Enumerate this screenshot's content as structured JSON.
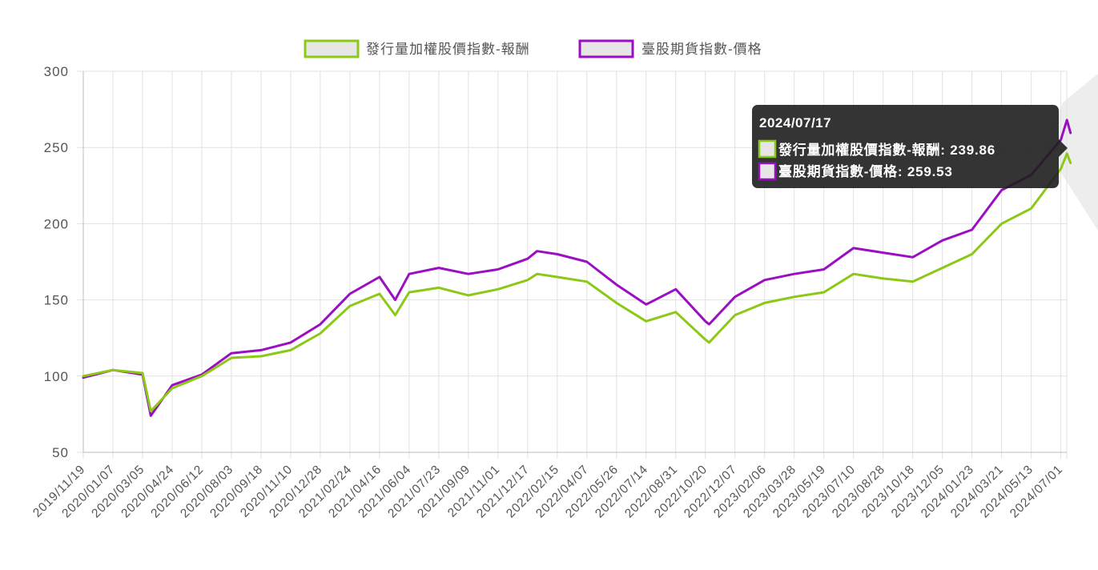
{
  "chart_data": {
    "type": "line",
    "title": "",
    "xlabel": "",
    "ylabel": "",
    "ylim": [
      50,
      300
    ],
    "y_ticks": [
      "300",
      "250",
      "200",
      "150",
      "100",
      "50"
    ],
    "x_tick_labels": [
      "2019/11/19",
      "2020/01/07",
      "2020/03/05",
      "2020/04/24",
      "2020/06/12",
      "2020/08/03",
      "2020/09/18",
      "2020/11/10",
      "2020/12/28",
      "2021/02/24",
      "2021/04/16",
      "2021/06/04",
      "2021/07/23",
      "2021/09/09",
      "2021/11/01",
      "2021/12/17",
      "2022/02/15",
      "2022/04/07",
      "2022/05/26",
      "2022/07/14",
      "2022/08/31",
      "2022/10/20",
      "2022/12/07",
      "2023/02/06",
      "2023/03/28",
      "2023/05/19",
      "2023/07/10",
      "2023/08/28",
      "2023/10/18",
      "2023/12/05",
      "2024/01/23",
      "2024/03/21",
      "2024/05/13",
      "2024/07/01"
    ],
    "grid": true,
    "legend_position": "top",
    "series": [
      {
        "name": "發行量加權股價指數-報酬",
        "color": "#8cc917",
        "x": [
          "2019/11/19",
          "2020/01/07",
          "2020/03/05",
          "2020/03/19",
          "2020/04/24",
          "2020/06/12",
          "2020/08/03",
          "2020/09/18",
          "2020/11/10",
          "2020/12/28",
          "2021/02/24",
          "2021/04/16",
          "2021/05/12",
          "2021/06/04",
          "2021/07/23",
          "2021/09/09",
          "2021/11/01",
          "2021/12/17",
          "2022/01/05",
          "2022/02/15",
          "2022/04/07",
          "2022/05/26",
          "2022/07/14",
          "2022/08/31",
          "2022/10/20",
          "2022/10/26",
          "2022/12/07",
          "2023/02/06",
          "2023/03/28",
          "2023/05/19",
          "2023/07/10",
          "2023/08/28",
          "2023/10/18",
          "2023/12/05",
          "2024/01/23",
          "2024/03/21",
          "2024/05/13",
          "2024/07/01",
          "2024/07/11",
          "2024/07/17"
        ],
        "values": [
          100,
          104,
          102,
          77,
          92,
          100,
          112,
          113,
          117,
          128,
          146,
          154,
          140,
          155,
          158,
          153,
          157,
          163,
          167,
          165,
          162,
          148,
          136,
          142,
          124,
          122,
          140,
          148,
          152,
          155,
          167,
          164,
          162,
          171,
          180,
          200,
          210,
          236,
          246,
          239.86
        ]
      },
      {
        "name": "臺股期貨指數-價格",
        "color": "#9b0fc2",
        "x": [
          "2019/11/19",
          "2020/01/07",
          "2020/03/05",
          "2020/03/19",
          "2020/04/24",
          "2020/06/12",
          "2020/08/03",
          "2020/09/18",
          "2020/11/10",
          "2020/12/28",
          "2021/02/24",
          "2021/04/16",
          "2021/05/12",
          "2021/06/04",
          "2021/07/23",
          "2021/09/09",
          "2021/11/01",
          "2021/12/17",
          "2022/01/05",
          "2022/02/15",
          "2022/04/07",
          "2022/05/26",
          "2022/07/14",
          "2022/08/31",
          "2022/10/20",
          "2022/10/26",
          "2022/12/07",
          "2023/02/06",
          "2023/03/28",
          "2023/05/19",
          "2023/07/10",
          "2023/08/28",
          "2023/10/18",
          "2023/12/05",
          "2024/01/23",
          "2024/03/21",
          "2024/05/13",
          "2024/07/01",
          "2024/07/11",
          "2024/07/17"
        ],
        "values": [
          99,
          104,
          101,
          74,
          94,
          101,
          115,
          117,
          122,
          134,
          154,
          165,
          150,
          167,
          171,
          167,
          170,
          177,
          182,
          180,
          175,
          160,
          147,
          157,
          136,
          134,
          152,
          163,
          167,
          170,
          184,
          181,
          178,
          189,
          196,
          222,
          232,
          255,
          268,
          259.53
        ]
      }
    ]
  },
  "tooltip": {
    "title": "2024/07/17",
    "rows": [
      "發行量加權股價指數-報酬: 239.86",
      "臺股期貨指數-價格: 259.53"
    ]
  }
}
